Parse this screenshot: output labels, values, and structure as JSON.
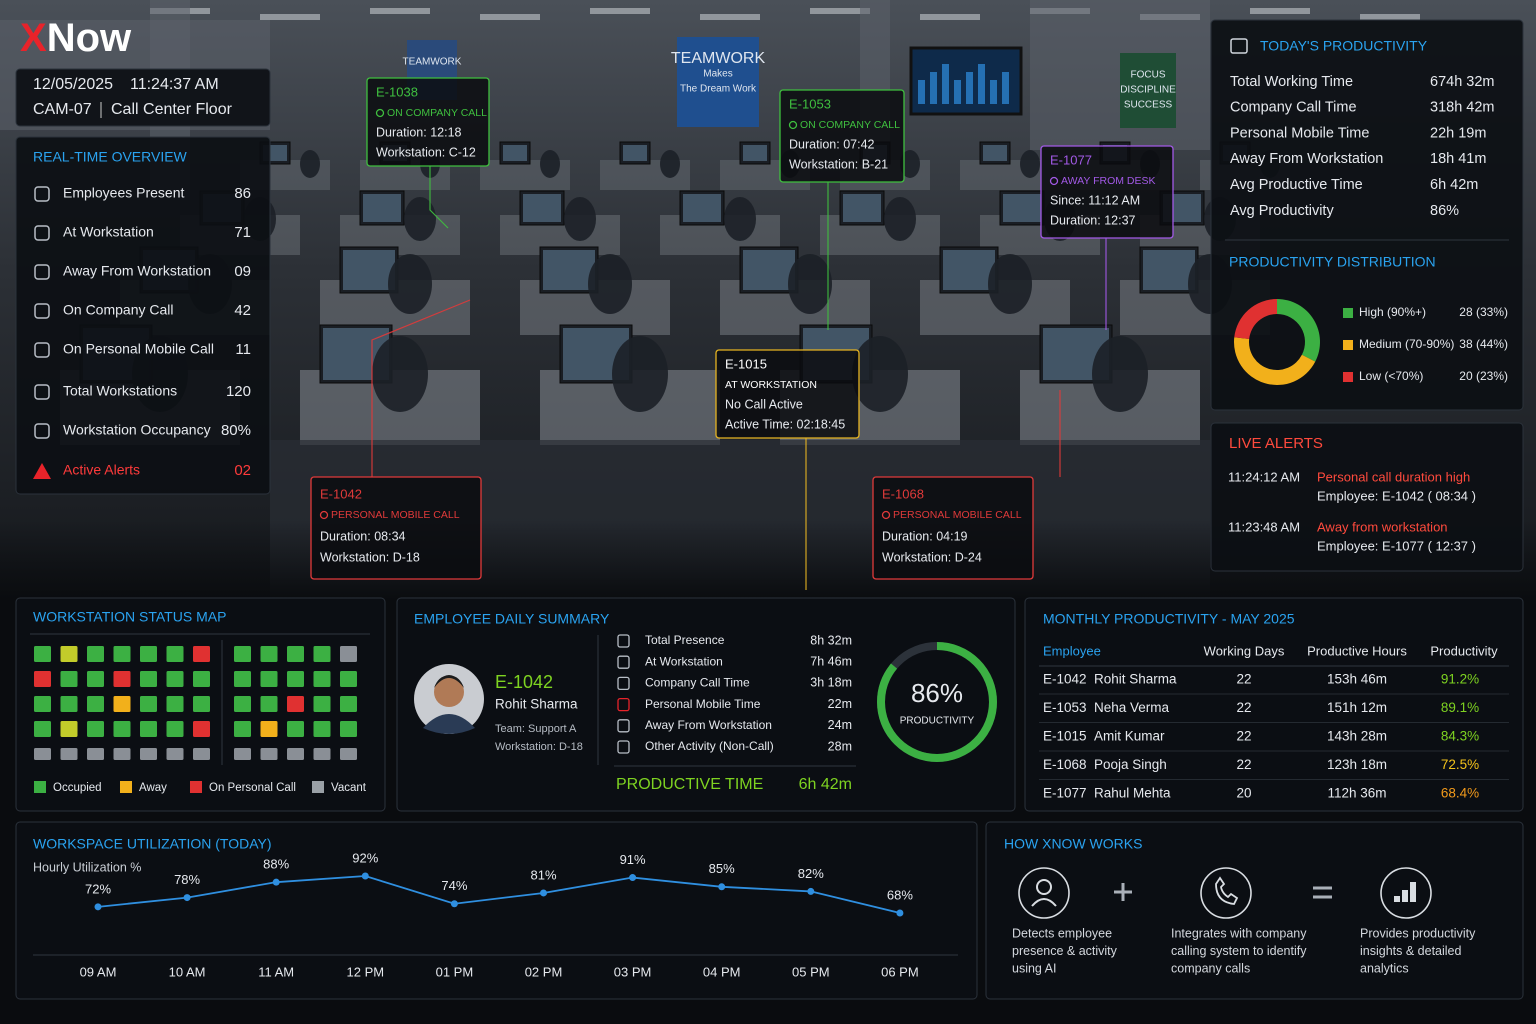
{
  "brand": {
    "x": "X",
    "rest": "Now"
  },
  "camera": {
    "date": "12/05/2025",
    "time": "11:24:37 AM",
    "cam": "CAM-07",
    "location": "Call Center Floor"
  },
  "photo_signs": [
    {
      "lines": [
        "TEAMWORK"
      ],
      "color": "#2a4a7a"
    },
    {
      "lines": [
        "TEAMWORK",
        "Makes",
        "The Dream Work"
      ],
      "color": "#1f4f8f"
    },
    {
      "lines": [
        "FOCUS",
        "DISCIPLINE",
        "SUCCESS"
      ],
      "color": "#1f4d35"
    }
  ],
  "overview": {
    "title": "REAL-TIME OVERVIEW",
    "rows": [
      {
        "label": "Employees Present",
        "value": "86"
      },
      {
        "label": "At Workstation",
        "value": "71"
      },
      {
        "label": "Away From Workstation",
        "value": "09"
      },
      {
        "label": "On Company Call",
        "value": "42"
      },
      {
        "label": "On Personal Mobile Call",
        "value": "11"
      },
      {
        "label": "Total Workstations",
        "value": "120"
      },
      {
        "label": "Workstation Occupancy",
        "value": "80%"
      },
      {
        "label": "Active Alerts",
        "value": "02"
      }
    ]
  },
  "tags": [
    {
      "id": "E-1038",
      "status": "ON COMPANY CALL",
      "lines": [
        "Duration: 12:18",
        "Workstation: C-12"
      ],
      "color": "#3fbf3f"
    },
    {
      "id": "E-1053",
      "status": "ON COMPANY CALL",
      "lines": [
        "Duration: 07:42",
        "Workstation: B-21"
      ],
      "color": "#3fbf3f"
    },
    {
      "id": "E-1077",
      "status": "AWAY FROM DESK",
      "lines": [
        "Since: 11:12 AM",
        "Duration: 12:37"
      ],
      "color": "#a259e6"
    },
    {
      "id": "E-1015",
      "status": "AT WORKSTATION",
      "lines": [
        "No Call Active",
        "Active Time: 02:18:45"
      ],
      "color": "#e6b422"
    },
    {
      "id": "E-1042",
      "status": "PERSONAL MOBILE CALL",
      "lines": [
        "Duration: 08:34",
        "Workstation: D-18"
      ],
      "color": "#e03a3a"
    },
    {
      "id": "E-1068",
      "status": "PERSONAL MOBILE CALL",
      "lines": [
        "Duration: 04:19",
        "Workstation: D-24"
      ],
      "color": "#e03a3a"
    }
  ],
  "todays_productivity": {
    "title": "TODAY'S PRODUCTIVITY",
    "rows": [
      {
        "label": "Total Working Time",
        "value": "674h 32m"
      },
      {
        "label": "Company Call Time",
        "value": "318h 42m"
      },
      {
        "label": "Personal Mobile Time",
        "value": "22h 19m"
      },
      {
        "label": "Away From Workstation",
        "value": "18h 41m"
      },
      {
        "label": "Avg Productive Time",
        "value": "6h 42m"
      },
      {
        "label": "Avg Productivity",
        "value": "86%"
      }
    ]
  },
  "chart_data": [
    {
      "type": "pie",
      "title": "PRODUCTIVITY DISTRIBUTION",
      "donut": true,
      "categories": [
        "High (90%+)",
        "Medium (70-90%)",
        "Low (<70%)"
      ],
      "values": [
        28,
        38,
        20
      ],
      "value_labels": [
        "28 (33%)",
        "38 (44%)",
        "20 (23%)"
      ],
      "colors": [
        "#3cb043",
        "#f2b01b",
        "#e03131"
      ]
    },
    {
      "type": "line",
      "title": "WORKSPACE UTILIZATION (TODAY)",
      "subtitle": "Hourly Utilization %",
      "categories": [
        "09 AM",
        "10 AM",
        "11 AM",
        "12 PM",
        "01 PM",
        "02 PM",
        "03 PM",
        "04 PM",
        "05 PM",
        "06 PM"
      ],
      "values": [
        72,
        78,
        88,
        92,
        74,
        81,
        91,
        85,
        82,
        68
      ],
      "value_labels": [
        "72%",
        "78%",
        "88%",
        "92%",
        "74%",
        "81%",
        "91%",
        "85%",
        "82%",
        "68%"
      ],
      "color": "#2f8fe0",
      "grid": false
    }
  ],
  "live_alerts": {
    "title": "LIVE ALERTS",
    "items": [
      {
        "time": "11:24:12 AM",
        "message": "Personal call duration high",
        "detail": "Employee: E-1042 ( 08:34 )"
      },
      {
        "time": "11:23:48 AM",
        "message": "Away from workstation",
        "detail": "Employee: E-1077 ( 12:37 )"
      }
    ]
  },
  "status_map": {
    "title": "WORKSTATION STATUS MAP",
    "blocks": [
      [
        [
          "#3cb043",
          "#c2cc2a",
          "#3cb043",
          "#3cb043",
          "#3cb043",
          "#3cb043",
          "#e03131"
        ],
        [
          "#e03131",
          "#3cb043",
          "#3cb043",
          "#e03131",
          "#3cb043",
          "#3cb043",
          "#3cb043"
        ],
        [
          "#3cb043",
          "#3cb043",
          "#3cb043",
          "#f2b01b",
          "#3cb043",
          "#3cb043",
          "#3cb043"
        ],
        [
          "#3cb043",
          "#c2cc2a",
          "#3cb043",
          "#3cb043",
          "#3cb043",
          "#3cb043",
          "#e03131"
        ],
        [
          "#8a8f96",
          "#8a8f96",
          "#8a8f96",
          "#8a8f96",
          "#8a8f96",
          "#8a8f96",
          "#8a8f96"
        ]
      ],
      [
        [
          "#3cb043",
          "#3cb043",
          "#3cb043",
          "#3cb043",
          "#8a8f96"
        ],
        [
          "#3cb043",
          "#3cb043",
          "#3cb043",
          "#3cb043",
          "#3cb043"
        ],
        [
          "#3cb043",
          "#3cb043",
          "#e03131",
          "#3cb043",
          "#3cb043"
        ],
        [
          "#3cb043",
          "#f2b01b",
          "#3cb043",
          "#3cb043",
          "#3cb043"
        ],
        [
          "#8a8f96",
          "#8a8f96",
          "#8a8f96",
          "#8a8f96",
          "#8a8f96"
        ]
      ]
    ],
    "legend": [
      {
        "label": "Occupied",
        "color": "#3cb043"
      },
      {
        "label": "Away",
        "color": "#f2b01b"
      },
      {
        "label": "On Personal Call",
        "color": "#e03131"
      },
      {
        "label": "Vacant",
        "color": "#9aa0a6"
      }
    ]
  },
  "employee_summary": {
    "title": "EMPLOYEE DAILY SUMMARY",
    "id": "E-1042",
    "name": "Rohit Sharma",
    "team": "Team: Support A",
    "workstation": "Workstation: D-18",
    "rows": [
      {
        "label": "Total Presence",
        "value": "8h 32m"
      },
      {
        "label": "At Workstation",
        "value": "7h 46m"
      },
      {
        "label": "Company Call Time",
        "value": "3h 18m"
      },
      {
        "label": "Personal Mobile Time",
        "value": "22m"
      },
      {
        "label": "Away From Workstation",
        "value": "24m"
      },
      {
        "label": "Other Activity (Non-Call)",
        "value": "28m"
      }
    ],
    "productive_label": "PRODUCTIVE TIME",
    "productive_value": "6h 42m",
    "gauge": {
      "value": 86,
      "value_label": "86%",
      "label": "PRODUCTIVITY",
      "color": "#3cb043"
    }
  },
  "monthly": {
    "title": "MONTHLY PRODUCTIVITY - MAY 2025",
    "columns": [
      "Employee",
      "Working Days",
      "Productive Hours",
      "Productivity"
    ],
    "rows": [
      {
        "id": "E-1042",
        "name": "Rohit Sharma",
        "days": "22",
        "hours": "153h 46m",
        "productivity": "91.2%",
        "color": "#7ed321"
      },
      {
        "id": "E-1053",
        "name": "Neha Verma",
        "days": "22",
        "hours": "151h 12m",
        "productivity": "89.1%",
        "color": "#7ed321"
      },
      {
        "id": "E-1015",
        "name": "Amit Kumar",
        "days": "22",
        "hours": "143h 28m",
        "productivity": "84.3%",
        "color": "#7ed321"
      },
      {
        "id": "E-1068",
        "name": "Pooja Singh",
        "days": "22",
        "hours": "123h 18m",
        "productivity": "72.5%",
        "color": "#f2c21b"
      },
      {
        "id": "E-1077",
        "name": "Rahul Mehta",
        "days": "20",
        "hours": "112h 36m",
        "productivity": "68.4%",
        "color": "#f29a1b"
      }
    ]
  },
  "how_it_works": {
    "title": "HOW XNOW WORKS",
    "steps": [
      {
        "lines": [
          "Detects employee",
          "presence & activity",
          "using AI"
        ]
      },
      {
        "lines": [
          "Integrates with company",
          "calling system to identify",
          "company calls"
        ]
      },
      {
        "lines": [
          "Provides productivity",
          "insights & detailed",
          "analytics"
        ]
      }
    ]
  }
}
